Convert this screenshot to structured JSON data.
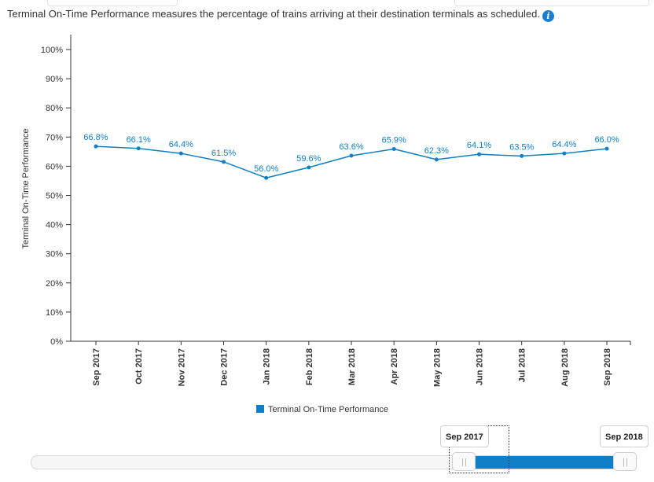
{
  "description": {
    "text": "Terminal On-Time Performance measures the percentage of trains arriving at their destination terminals as scheduled.",
    "info_icon": "info-icon"
  },
  "chart_data": {
    "type": "line",
    "ylabel": "Terminal On-Time Performance",
    "xlabel": "",
    "ylim": [
      0,
      100
    ],
    "yticks": [
      "0%",
      "10%",
      "20%",
      "30%",
      "40%",
      "50%",
      "60%",
      "70%",
      "80%",
      "90%",
      "100%"
    ],
    "grid": false,
    "categories": [
      "Sep 2017",
      "Oct 2017",
      "Nov 2017",
      "Dec 2017",
      "Jan 2018",
      "Feb 2018",
      "Mar 2018",
      "Apr 2018",
      "May 2018",
      "Jun 2018",
      "Jul 2018",
      "Aug 2018",
      "Sep 2018"
    ],
    "series": [
      {
        "name": "Terminal On-Time Performance",
        "values": [
          66.8,
          66.1,
          64.4,
          61.5,
          56.0,
          59.6,
          63.6,
          65.9,
          62.3,
          64.1,
          63.5,
          64.4,
          66.0
        ],
        "labels": [
          "66.8%",
          "66.1%",
          "64.4%",
          "61.5%",
          "56.0%",
          "59.6%",
          "63.6%",
          "65.9%",
          "62.3%",
          "64.1%",
          "63.5%",
          "64.4%",
          "66.0%"
        ],
        "color": "#0f7fc7"
      }
    ],
    "legend": "bottom-center"
  },
  "slider": {
    "start_label": "Sep 2017",
    "end_label": "Sep 2018",
    "color": "#0f7fc7"
  }
}
